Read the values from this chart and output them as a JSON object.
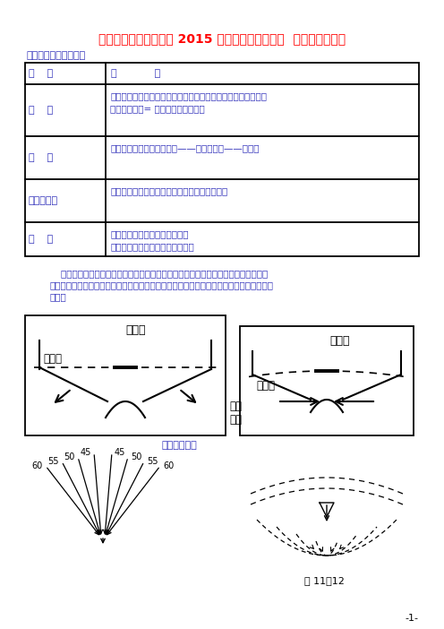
{
  "title": "湖南省新田县第一中学 2015 届高考地理一轮复习  水循环强化训练",
  "title_color": "#FF0000",
  "section1_title": "一、等潜水位线的判读",
  "text_color": "#3333BB",
  "table_header": [
    "特    征",
    "应            用"
  ],
  "table_rows": [
    [
      "数    值",
      "判断地势分布和河流流向：地势高处潜水位高地势低处潜水位低\n潜水埋藏深度= 地面海拔一潜水海拔"
    ],
    [
      "疏    密",
      "潜水的流速：等潜水位线密——流速快；疏——流速慢"
    ],
    [
      "走向和弯曲",
      "潜水流向：垂直于等潜水位线，从高处指向低处"
    ],
    [
      "闭    合",
      "中心潜水位低：地下水开采过度\n中心潜水位高：降水多或大水漫灌"
    ]
  ],
  "para_lines": [
    "    河流水、湖泊水和地下水之间，具有相互补给的关系。当河流水位高于湖泊或潜水水",
    "位时，河流水补给湖泊或潜水；当河流水位低于湖泊或潜水水位时，则湖泊水或潜水补给河",
    "流水。"
  ],
  "d1_title": "丰水期",
  "d1_wt": "潜水面",
  "d1_bot": "地水\n水位",
  "d2_title": "枯水期",
  "d2_wt": "潜水面",
  "bot_title": "潜水补给河水",
  "nums": [
    "60",
    "55",
    "50",
    "45"
  ],
  "fig_label": "图 11－12",
  "page_num": "-1-"
}
